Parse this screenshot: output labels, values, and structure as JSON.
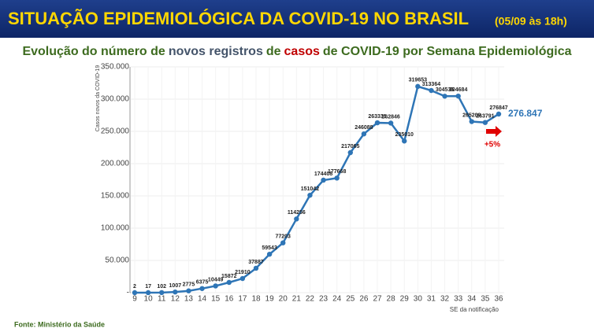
{
  "chart_data": {
    "type": "line",
    "title": "SITUAÇÃO EPIDEMIOLÓGICA DA COVID-19 NO BRASIL",
    "title_date": "(05/09 às 18h)",
    "subtitle_parts": [
      {
        "text": "Evolução do número de",
        "color": "#3d6b1f"
      },
      {
        "text": "novos registros",
        "color": "#44546a"
      },
      {
        "text": "de",
        "color": "#3d6b1f"
      },
      {
        "text": "casos",
        "color": "#c00000"
      },
      {
        "text": "de COVID-19 por Semana Epidemiológica",
        "color": "#3d6b1f"
      }
    ],
    "y_label": "Casos novos da COVID-19",
    "x_label": "SE da notificação",
    "source": "Fonte: Ministério da Saúde",
    "categories": [
      "9",
      "10",
      "11",
      "12",
      "13",
      "14",
      "15",
      "16",
      "17",
      "18",
      "19",
      "20",
      "21",
      "22",
      "23",
      "24",
      "25",
      "26",
      "27",
      "28",
      "29",
      "30",
      "31",
      "32",
      "33",
      "34",
      "35",
      "36"
    ],
    "series": [
      {
        "name": "Casos novos",
        "color": "#2e75b6",
        "values": [
          2,
          17,
          102,
          1007,
          2775,
          6375,
          10449,
          15872,
          21910,
          37887,
          59543,
          77203,
          114256,
          151042,
          174408,
          177668,
          217065,
          246088,
          263331,
          262846,
          235010,
          319653,
          313364,
          304535,
          304684,
          265209,
          263791,
          276847
        ]
      }
    ],
    "highlight_label": "276.847",
    "highlight_change": "+5%",
    "ylim": [
      0,
      350000
    ],
    "yticks": [
      {
        "value": 0,
        "label": "-"
      },
      {
        "value": 50000,
        "label": "50.000"
      },
      {
        "value": 100000,
        "label": "100.000"
      },
      {
        "value": 150000,
        "label": "150.000"
      },
      {
        "value": 200000,
        "label": "200.000"
      },
      {
        "value": 250000,
        "label": "250.000"
      },
      {
        "value": 300000,
        "label": "300.000"
      },
      {
        "value": 350000,
        "label": "350.000"
      }
    ],
    "grid": true
  }
}
